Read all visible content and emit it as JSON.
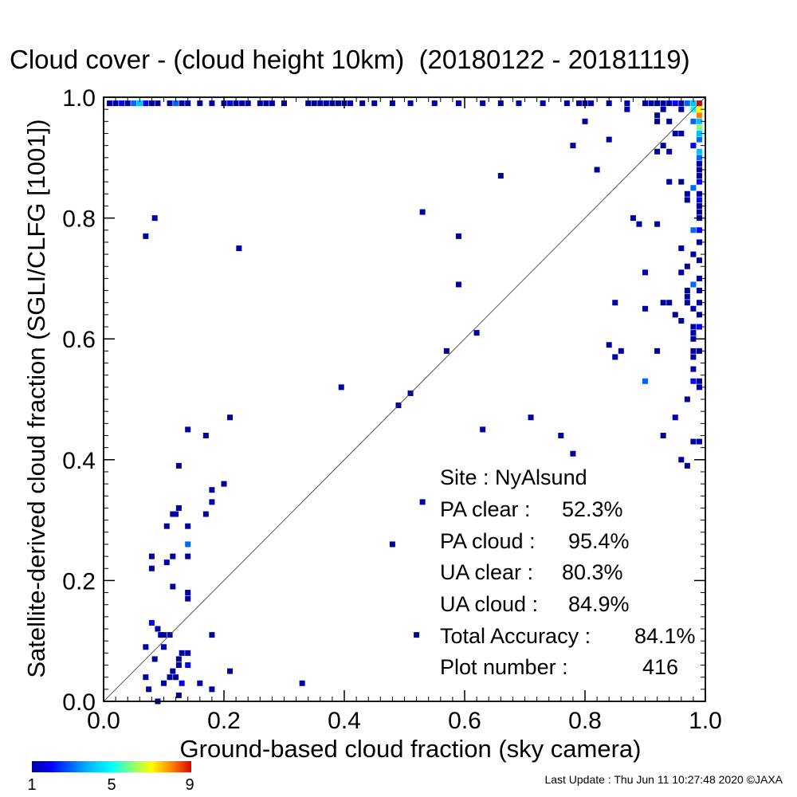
{
  "title": "Cloud cover - (cloud height 10km)  (20180122 - 20181119)",
  "chart_data": {
    "type": "heatmap",
    "title": "Cloud cover - (cloud height 10km)  (20180122 - 20181119)",
    "xlabel": "Ground-based cloud fraction (sky camera)",
    "ylabel": "Satellite-derived cloud fraction (SGLI/CLFG [1001])",
    "xlim": [
      0.0,
      1.0
    ],
    "ylim": [
      0.0,
      1.0
    ],
    "x_ticks": [
      "0.0",
      "0.2",
      "0.4",
      "0.6",
      "0.8",
      "1.0"
    ],
    "y_ticks": [
      "0.0",
      "0.2",
      "0.4",
      "0.6",
      "0.8",
      "1.0"
    ],
    "reference_line": "y = x",
    "grid": false,
    "colorbar": {
      "min": 1,
      "max": 9,
      "ticks": [
        "1",
        "5",
        "9"
      ],
      "colormap": "rainbow (blue to red)"
    },
    "cells": [
      {
        "x": 0.07,
        "y": 0.77,
        "c": 1
      },
      {
        "x": 0.085,
        "y": 0.8,
        "c": 1
      },
      {
        "x": 0.225,
        "y": 0.75,
        "c": 1
      },
      {
        "x": 0.395,
        "y": 0.52,
        "c": 1
      },
      {
        "x": 0.49,
        "y": 0.49,
        "c": 1
      },
      {
        "x": 0.51,
        "y": 0.51,
        "c": 1
      },
      {
        "x": 0.53,
        "y": 0.81,
        "c": 1
      },
      {
        "x": 0.59,
        "y": 0.77,
        "c": 1
      },
      {
        "x": 0.59,
        "y": 0.69,
        "c": 1
      },
      {
        "x": 0.57,
        "y": 0.58,
        "c": 1
      },
      {
        "x": 0.62,
        "y": 0.61,
        "c": 1
      },
      {
        "x": 0.66,
        "y": 0.87,
        "c": 1
      },
      {
        "x": 0.71,
        "y": 0.47,
        "c": 1
      },
      {
        "x": 0.63,
        "y": 0.45,
        "c": 1
      },
      {
        "x": 0.76,
        "y": 0.44,
        "c": 1
      },
      {
        "x": 0.78,
        "y": 0.41,
        "c": 1
      },
      {
        "x": 0.78,
        "y": 0.92,
        "c": 1
      },
      {
        "x": 0.8,
        "y": 0.96,
        "c": 1
      },
      {
        "x": 0.82,
        "y": 0.88,
        "c": 1
      },
      {
        "x": 0.84,
        "y": 0.93,
        "c": 1
      },
      {
        "x": 0.88,
        "y": 0.8,
        "c": 1
      },
      {
        "x": 0.89,
        "y": 0.79,
        "c": 1
      },
      {
        "x": 0.92,
        "y": 0.79,
        "c": 1
      },
      {
        "x": 0.9,
        "y": 0.71,
        "c": 1
      },
      {
        "x": 0.9,
        "y": 0.65,
        "c": 1
      },
      {
        "x": 0.85,
        "y": 0.66,
        "c": 1
      },
      {
        "x": 0.84,
        "y": 0.59,
        "c": 1
      },
      {
        "x": 0.85,
        "y": 0.57,
        "c": 1
      },
      {
        "x": 0.86,
        "y": 0.58,
        "c": 1
      },
      {
        "x": 0.9,
        "y": 0.53,
        "c": 3
      },
      {
        "x": 0.92,
        "y": 0.58,
        "c": 1
      },
      {
        "x": 0.93,
        "y": 0.44,
        "c": 1
      },
      {
        "x": 0.95,
        "y": 0.47,
        "c": 1
      },
      {
        "x": 0.96,
        "y": 0.4,
        "c": 1
      },
      {
        "x": 0.97,
        "y": 0.39,
        "c": 1
      },
      {
        "x": 0.97,
        "y": 0.5,
        "c": 1
      },
      {
        "x": 0.94,
        "y": 0.66,
        "c": 1
      },
      {
        "x": 0.95,
        "y": 0.64,
        "c": 1
      },
      {
        "x": 0.93,
        "y": 0.66,
        "c": 1
      },
      {
        "x": 0.96,
        "y": 0.63,
        "c": 1
      },
      {
        "x": 0.96,
        "y": 0.71,
        "c": 1
      },
      {
        "x": 0.96,
        "y": 0.75,
        "c": 1
      },
      {
        "x": 0.96,
        "y": 0.86,
        "c": 1
      },
      {
        "x": 0.94,
        "y": 0.86,
        "c": 1
      },
      {
        "x": 0.94,
        "y": 0.91,
        "c": 1
      },
      {
        "x": 0.93,
        "y": 0.92,
        "c": 1
      },
      {
        "x": 0.95,
        "y": 0.94,
        "c": 1
      },
      {
        "x": 0.96,
        "y": 0.94,
        "c": 1
      },
      {
        "x": 0.92,
        "y": 0.96,
        "c": 1
      },
      {
        "x": 0.92,
        "y": 0.97,
        "c": 1
      },
      {
        "x": 0.94,
        "y": 0.96,
        "c": 1
      },
      {
        "x": 0.96,
        "y": 0.98,
        "c": 1
      },
      {
        "x": 0.93,
        "y": 0.98,
        "c": 1
      },
      {
        "x": 0.87,
        "y": 0.98,
        "c": 1
      },
      {
        "x": 0.97,
        "y": 0.84,
        "c": 1
      },
      {
        "x": 0.97,
        "y": 0.83,
        "c": 1
      },
      {
        "x": 0.97,
        "y": 0.72,
        "c": 1
      },
      {
        "x": 0.97,
        "y": 0.68,
        "c": 1
      },
      {
        "x": 0.97,
        "y": 0.67,
        "c": 1
      },
      {
        "x": 0.97,
        "y": 0.66,
        "c": 1
      },
      {
        "x": 0.98,
        "y": 0.55,
        "c": 1
      },
      {
        "x": 0.98,
        "y": 0.43,
        "c": 1
      },
      {
        "x": 0.99,
        "y": 0.43,
        "c": 1
      },
      {
        "x": 0.92,
        "y": 0.91,
        "c": 1
      },
      {
        "x": 0.14,
        "y": 0.45,
        "c": 1
      },
      {
        "x": 0.17,
        "y": 0.44,
        "c": 1
      },
      {
        "x": 0.21,
        "y": 0.47,
        "c": 1
      },
      {
        "x": 0.125,
        "y": 0.39,
        "c": 1
      },
      {
        "x": 0.18,
        "y": 0.35,
        "c": 1
      },
      {
        "x": 0.2,
        "y": 0.36,
        "c": 1
      },
      {
        "x": 0.18,
        "y": 0.33,
        "c": 1
      },
      {
        "x": 0.17,
        "y": 0.31,
        "c": 1
      },
      {
        "x": 0.115,
        "y": 0.31,
        "c": 1
      },
      {
        "x": 0.12,
        "y": 0.31,
        "c": 1
      },
      {
        "x": 0.125,
        "y": 0.32,
        "c": 1
      },
      {
        "x": 0.105,
        "y": 0.29,
        "c": 1
      },
      {
        "x": 0.14,
        "y": 0.29,
        "c": 1
      },
      {
        "x": 0.14,
        "y": 0.26,
        "c": 3
      },
      {
        "x": 0.08,
        "y": 0.24,
        "c": 1
      },
      {
        "x": 0.08,
        "y": 0.22,
        "c": 1
      },
      {
        "x": 0.115,
        "y": 0.24,
        "c": 1
      },
      {
        "x": 0.105,
        "y": 0.23,
        "c": 1
      },
      {
        "x": 0.14,
        "y": 0.24,
        "c": 1
      },
      {
        "x": 0.115,
        "y": 0.19,
        "c": 1
      },
      {
        "x": 0.14,
        "y": 0.18,
        "c": 1
      },
      {
        "x": 0.14,
        "y": 0.17,
        "c": 1
      },
      {
        "x": 0.08,
        "y": 0.13,
        "c": 2
      },
      {
        "x": 0.09,
        "y": 0.12,
        "c": 1
      },
      {
        "x": 0.095,
        "y": 0.11,
        "c": 1
      },
      {
        "x": 0.1,
        "y": 0.11,
        "c": 1
      },
      {
        "x": 0.11,
        "y": 0.11,
        "c": 1
      },
      {
        "x": 0.18,
        "y": 0.11,
        "c": 1
      },
      {
        "x": 0.07,
        "y": 0.09,
        "c": 1
      },
      {
        "x": 0.1,
        "y": 0.09,
        "c": 1
      },
      {
        "x": 0.085,
        "y": 0.07,
        "c": 1
      },
      {
        "x": 0.125,
        "y": 0.07,
        "c": 1
      },
      {
        "x": 0.13,
        "y": 0.08,
        "c": 1
      },
      {
        "x": 0.14,
        "y": 0.08,
        "c": 1
      },
      {
        "x": 0.125,
        "y": 0.06,
        "c": 1
      },
      {
        "x": 0.14,
        "y": 0.06,
        "c": 2
      },
      {
        "x": 0.07,
        "y": 0.04,
        "c": 1
      },
      {
        "x": 0.1,
        "y": 0.03,
        "c": 1
      },
      {
        "x": 0.11,
        "y": 0.04,
        "c": 1
      },
      {
        "x": 0.12,
        "y": 0.04,
        "c": 1
      },
      {
        "x": 0.115,
        "y": 0.05,
        "c": 1
      },
      {
        "x": 0.13,
        "y": 0.03,
        "c": 2
      },
      {
        "x": 0.16,
        "y": 0.03,
        "c": 1
      },
      {
        "x": 0.18,
        "y": 0.02,
        "c": 1
      },
      {
        "x": 0.21,
        "y": 0.05,
        "c": 1
      },
      {
        "x": 0.33,
        "y": 0.03,
        "c": 1
      },
      {
        "x": 0.125,
        "y": 0.01,
        "c": 1
      },
      {
        "x": 0.075,
        "y": 0.02,
        "c": 1
      },
      {
        "x": 0.09,
        "y": 0.0,
        "c": 1
      },
      {
        "x": 0.48,
        "y": 0.26,
        "c": 1
      },
      {
        "x": 0.53,
        "y": 0.33,
        "c": 1
      },
      {
        "x": 0.52,
        "y": 0.11,
        "c": 1
      },
      {
        "x": 0.99,
        "y": 0.99,
        "c": 9
      },
      {
        "x": 0.99,
        "y": 0.98,
        "c": 7
      },
      {
        "x": 0.98,
        "y": 0.98,
        "c": 5
      },
      {
        "x": 0.99,
        "y": 0.97,
        "c": 8
      },
      {
        "x": 0.98,
        "y": 0.99,
        "c": 4
      },
      {
        "x": 0.97,
        "y": 0.99,
        "c": 3
      },
      {
        "x": 0.99,
        "y": 0.96,
        "c": 4
      },
      {
        "x": 0.99,
        "y": 0.95,
        "c": 6
      },
      {
        "x": 0.98,
        "y": 0.96,
        "c": 3
      },
      {
        "x": 0.99,
        "y": 0.94,
        "c": 4
      },
      {
        "x": 0.99,
        "y": 0.93,
        "c": 3
      },
      {
        "x": 0.98,
        "y": 0.92,
        "c": 2
      },
      {
        "x": 0.99,
        "y": 0.91,
        "c": 4
      },
      {
        "x": 0.99,
        "y": 0.9,
        "c": 3
      },
      {
        "x": 0.99,
        "y": 0.89,
        "c": 1
      },
      {
        "x": 0.99,
        "y": 0.88,
        "c": 1
      },
      {
        "x": 0.99,
        "y": 0.87,
        "c": 1
      },
      {
        "x": 0.99,
        "y": 0.86,
        "c": 2
      },
      {
        "x": 0.98,
        "y": 0.85,
        "c": 3
      },
      {
        "x": 0.99,
        "y": 0.84,
        "c": 1
      },
      {
        "x": 0.99,
        "y": 0.83,
        "c": 2
      },
      {
        "x": 0.99,
        "y": 0.82,
        "c": 1
      },
      {
        "x": 0.99,
        "y": 0.81,
        "c": 1
      },
      {
        "x": 0.99,
        "y": 0.8,
        "c": 1
      },
      {
        "x": 0.98,
        "y": 0.78,
        "c": 3
      },
      {
        "x": 0.99,
        "y": 0.78,
        "c": 2
      },
      {
        "x": 0.99,
        "y": 0.76,
        "c": 1
      },
      {
        "x": 0.98,
        "y": 0.74,
        "c": 1
      },
      {
        "x": 0.99,
        "y": 0.73,
        "c": 1
      },
      {
        "x": 0.99,
        "y": 0.7,
        "c": 1
      },
      {
        "x": 0.98,
        "y": 0.69,
        "c": 3
      },
      {
        "x": 0.99,
        "y": 0.68,
        "c": 1
      },
      {
        "x": 0.99,
        "y": 0.66,
        "c": 1
      },
      {
        "x": 0.98,
        "y": 0.62,
        "c": 1
      },
      {
        "x": 0.99,
        "y": 0.62,
        "c": 2
      },
      {
        "x": 0.98,
        "y": 0.61,
        "c": 1
      },
      {
        "x": 0.98,
        "y": 0.58,
        "c": 1
      },
      {
        "x": 0.98,
        "y": 0.57,
        "c": 1
      },
      {
        "x": 0.98,
        "y": 0.53,
        "c": 2
      },
      {
        "x": 0.99,
        "y": 0.53,
        "c": 1
      },
      {
        "x": 0.99,
        "y": 0.52,
        "c": 1
      },
      {
        "x": 0.99,
        "y": 0.64,
        "c": 1
      },
      {
        "x": 0.99,
        "y": 0.58,
        "c": 1
      },
      {
        "x": 0.98,
        "y": 0.65,
        "c": 1
      },
      {
        "x": 0.98,
        "y": 0.6,
        "c": 1
      },
      {
        "x": 0.01,
        "y": 0.99,
        "c": 1
      },
      {
        "x": 0.02,
        "y": 0.99,
        "c": 1
      },
      {
        "x": 0.03,
        "y": 0.99,
        "c": 2
      },
      {
        "x": 0.04,
        "y": 0.99,
        "c": 1
      },
      {
        "x": 0.05,
        "y": 0.99,
        "c": 3
      },
      {
        "x": 0.06,
        "y": 0.99,
        "c": 4
      },
      {
        "x": 0.07,
        "y": 0.99,
        "c": 2
      },
      {
        "x": 0.08,
        "y": 0.99,
        "c": 1
      },
      {
        "x": 0.09,
        "y": 0.99,
        "c": 1
      },
      {
        "x": 0.11,
        "y": 0.99,
        "c": 1
      },
      {
        "x": 0.12,
        "y": 0.99,
        "c": 3
      },
      {
        "x": 0.13,
        "y": 0.99,
        "c": 1
      },
      {
        "x": 0.14,
        "y": 0.99,
        "c": 1
      },
      {
        "x": 0.16,
        "y": 0.99,
        "c": 1
      },
      {
        "x": 0.18,
        "y": 0.99,
        "c": 1
      },
      {
        "x": 0.2,
        "y": 0.99,
        "c": 1
      },
      {
        "x": 0.21,
        "y": 0.99,
        "c": 2
      },
      {
        "x": 0.22,
        "y": 0.99,
        "c": 1
      },
      {
        "x": 0.23,
        "y": 0.99,
        "c": 1
      },
      {
        "x": 0.24,
        "y": 0.99,
        "c": 1
      },
      {
        "x": 0.26,
        "y": 0.99,
        "c": 1
      },
      {
        "x": 0.27,
        "y": 0.99,
        "c": 1
      },
      {
        "x": 0.28,
        "y": 0.99,
        "c": 1
      },
      {
        "x": 0.3,
        "y": 0.99,
        "c": 1
      },
      {
        "x": 0.34,
        "y": 0.99,
        "c": 1
      },
      {
        "x": 0.35,
        "y": 0.99,
        "c": 1
      },
      {
        "x": 0.36,
        "y": 0.99,
        "c": 1
      },
      {
        "x": 0.37,
        "y": 0.99,
        "c": 1
      },
      {
        "x": 0.38,
        "y": 0.99,
        "c": 1
      },
      {
        "x": 0.39,
        "y": 0.99,
        "c": 1
      },
      {
        "x": 0.4,
        "y": 0.99,
        "c": 1
      },
      {
        "x": 0.41,
        "y": 0.99,
        "c": 1
      },
      {
        "x": 0.43,
        "y": 0.99,
        "c": 1
      },
      {
        "x": 0.45,
        "y": 0.99,
        "c": 1
      },
      {
        "x": 0.48,
        "y": 0.99,
        "c": 1
      },
      {
        "x": 0.51,
        "y": 0.99,
        "c": 1
      },
      {
        "x": 0.55,
        "y": 0.99,
        "c": 1
      },
      {
        "x": 0.59,
        "y": 0.99,
        "c": 1
      },
      {
        "x": 0.63,
        "y": 0.99,
        "c": 1
      },
      {
        "x": 0.66,
        "y": 0.99,
        "c": 1
      },
      {
        "x": 0.69,
        "y": 0.99,
        "c": 1
      },
      {
        "x": 0.73,
        "y": 0.99,
        "c": 1
      },
      {
        "x": 0.77,
        "y": 0.99,
        "c": 1
      },
      {
        "x": 0.79,
        "y": 0.99,
        "c": 1
      },
      {
        "x": 0.8,
        "y": 0.99,
        "c": 1
      },
      {
        "x": 0.81,
        "y": 0.99,
        "c": 1
      },
      {
        "x": 0.84,
        "y": 0.99,
        "c": 1
      },
      {
        "x": 0.87,
        "y": 0.99,
        "c": 1
      },
      {
        "x": 0.9,
        "y": 0.99,
        "c": 1
      },
      {
        "x": 0.91,
        "y": 0.99,
        "c": 1
      },
      {
        "x": 0.92,
        "y": 0.99,
        "c": 1
      },
      {
        "x": 0.93,
        "y": 0.99,
        "c": 1
      },
      {
        "x": 0.94,
        "y": 0.99,
        "c": 1
      },
      {
        "x": 0.95,
        "y": 0.99,
        "c": 2
      },
      {
        "x": 0.96,
        "y": 0.99,
        "c": 1
      }
    ],
    "stats": {
      "site_label": "Site :",
      "site": "NyAlsund",
      "pa_clear_label": "PA clear :",
      "pa_clear": "52.3%",
      "pa_cloud_label": "PA cloud :",
      "pa_cloud": "95.4%",
      "ua_clear_label": "UA clear :",
      "ua_clear": "80.3%",
      "ua_cloud_label": "UA cloud :",
      "ua_cloud": "84.9%",
      "total_label": "Total Accuracy :",
      "total": "84.1%",
      "plot_label": "Plot number :",
      "plot_number": "416"
    }
  },
  "footer": {
    "last_update": "Last Update : Thu Jun 11 10:27:48 2020  ©JAXA"
  }
}
